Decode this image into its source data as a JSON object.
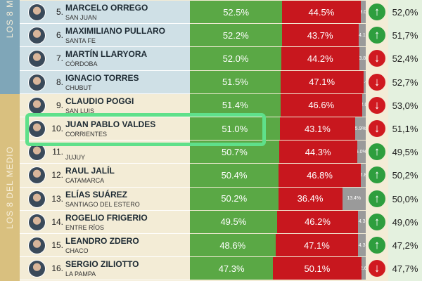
{
  "side_labels": [
    "LOS 8 M",
    "LOS 8 DEL MEDIO"
  ],
  "rows": [
    {
      "rank": "5.",
      "name": "MARCELO ORREGO",
      "province": "SAN JUAN",
      "approve": "52.5%",
      "disapprove": "44.5%",
      "undecided": "3.0",
      "trend": "up",
      "previous": "52,0%"
    },
    {
      "rank": "6.",
      "name": "MAXIMILIANO PULLARO",
      "province": "SANTA FE",
      "approve": "52.2%",
      "disapprove": "43.7%",
      "undecided": "4.1",
      "trend": "up",
      "previous": "51,7%"
    },
    {
      "rank": "7.",
      "name": "MARTÍN LLARYORA",
      "province": "CÓRDOBA",
      "approve": "52.0%",
      "disapprove": "44.2%",
      "undecided": "3.8",
      "trend": "down",
      "previous": "52,4%"
    },
    {
      "rank": "8.",
      "name": "IGNACIO TORRES",
      "province": "CHUBUT",
      "approve": "51.5%",
      "disapprove": "47.1%",
      "undecided": "1.4",
      "trend": "down",
      "previous": "52,7%"
    },
    {
      "rank": "9.",
      "name": "CLAUDIO POGGI",
      "province": "SAN LUIS",
      "approve": "51.4%",
      "disapprove": "46.6%",
      "undecided": "2.0",
      "trend": "down",
      "previous": "53,0%"
    },
    {
      "rank": "10.",
      "name": "JUAN PABLO VALDES",
      "province": "CORRIENTES",
      "approve": "51.0%",
      "disapprove": "43.1%",
      "undecided": "5.9%",
      "trend": "down",
      "previous": "51,1%"
    },
    {
      "rank": "11.",
      "province": "JUJUY",
      "approve": "50.7%",
      "disapprove": "44.3%",
      "undecided": "5.0%",
      "trend": "up",
      "previous": "49,5%"
    },
    {
      "rank": "12.",
      "name": "RAUL JALÍL",
      "province": "CATAMARCA",
      "approve": "50.4%",
      "disapprove": "46.8%",
      "undecided": "2.8",
      "trend": "up",
      "previous": "50,2%"
    },
    {
      "rank": "13.",
      "name": "ELÍAS SUÁREZ",
      "province": "SANTIAGO DEL ESTERO",
      "approve": "50.2%",
      "disapprove": "36.4%",
      "undecided": "13.4%",
      "trend": "up",
      "previous": "50,0%"
    },
    {
      "rank": "14.",
      "name": "ROGELIO FRIGERIO",
      "province": "ENTRE RÍOS",
      "approve": "49.5%",
      "disapprove": "46.2%",
      "undecided": "4.3",
      "trend": "up",
      "previous": "49,0%"
    },
    {
      "rank": "15.",
      "name": "LEANDRO ZDERO",
      "province": "CHACO",
      "approve": "48.6%",
      "disapprove": "47.1%",
      "undecided": "4.3",
      "trend": "up",
      "previous": "47,2%"
    },
    {
      "rank": "16.",
      "name": "SERGIO ZILIOTTO",
      "province": "LA PAMPA",
      "approve": "47.3%",
      "disapprove": "50.1%",
      "undecided": "2.6",
      "trend": "down",
      "previous": "47,7%"
    }
  ]
}
